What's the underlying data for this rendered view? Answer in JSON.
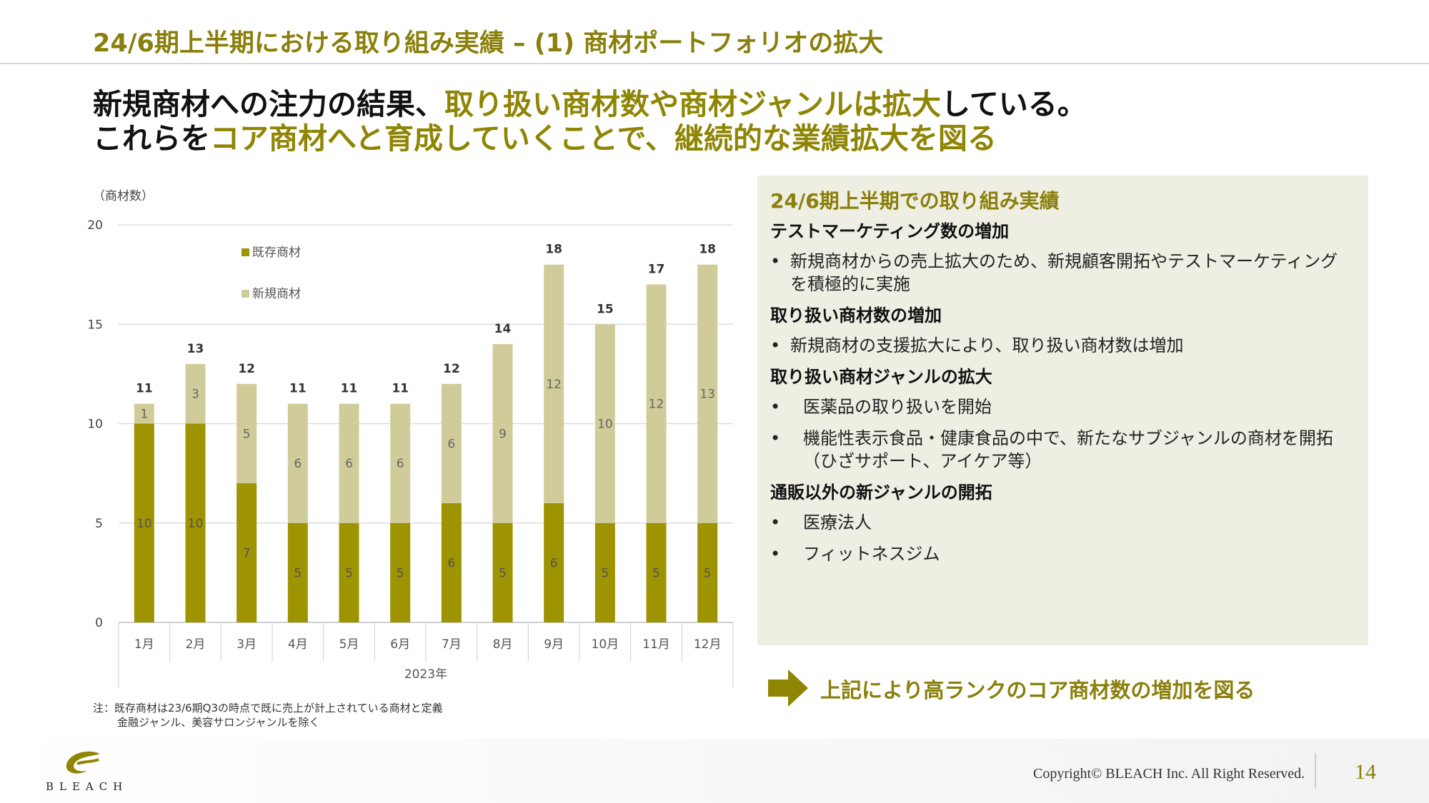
{
  "header": {
    "title": "24/6期上半期における取り組み実績 – (1) 商材ポートフォリオの拡大"
  },
  "headline": {
    "line1_a": "新規商材への注力の結果、",
    "line1_b": "取り扱い商材数や商材ジャンルは拡大",
    "line1_c": "している。",
    "line2_a": "これらを",
    "line2_b": "コア商材へと育成していくことで、継続的な業績拡大を図る"
  },
  "colors": {
    "accent": "#8a7f0a",
    "existing": "#9e9300",
    "new": "#d0cc9a",
    "panel_bg": "#efeee3"
  },
  "chart_data": {
    "type": "bar",
    "stacked": true,
    "unit_label": "（商材数）",
    "categories": [
      "1月",
      "2月",
      "3月",
      "4月",
      "5月",
      "6月",
      "7月",
      "8月",
      "9月",
      "10月",
      "11月",
      "12月"
    ],
    "category_group": "2023年",
    "series": [
      {
        "name": "既存商材",
        "values": [
          10,
          10,
          7,
          5,
          5,
          5,
          6,
          5,
          6,
          5,
          5,
          5
        ]
      },
      {
        "name": "新規商材",
        "values": [
          1,
          3,
          5,
          6,
          6,
          6,
          6,
          9,
          12,
          10,
          12,
          13
        ]
      }
    ],
    "totals": [
      11,
      13,
      12,
      11,
      11,
      11,
      12,
      14,
      18,
      15,
      17,
      18
    ],
    "ylim": [
      0,
      20
    ],
    "yticks": [
      0,
      5,
      10,
      15,
      20
    ],
    "grid": true,
    "legend_position": "top-left"
  },
  "note": {
    "line1": "注：既存商材は23/6期Q3の時点で既に売上が計上されている商材と定義",
    "line2": "金融ジャンル、美容サロンジャンルを除く"
  },
  "panel": {
    "title": "24/6期上半期での取り組み実績",
    "sections": [
      {
        "heading": "テストマーケティング数の増加",
        "style": "a",
        "bullets": [
          "新規商材からの売上拡大のため、新規顧客開拓やテストマーケティングを積極的に実施"
        ]
      },
      {
        "heading": "取り扱い商材数の増加",
        "style": "a",
        "bullets": [
          "新規商材の支援拡大により、取り扱い商材数は増加"
        ]
      },
      {
        "heading": "取り扱い商材ジャンルの拡大",
        "style": "b",
        "bullets": [
          "医薬品の取り扱いを開始",
          "機能性表示食品・健康食品の中で、新たなサブジャンルの商材を開拓（ひざサポート、アイケア等）"
        ]
      },
      {
        "heading": "通販以外の新ジャンルの開拓",
        "style": "b",
        "bullets": [
          "医療法人",
          "フィットネスジム"
        ]
      }
    ]
  },
  "conclusion": "上記により高ランクのコア商材数の増加を図る",
  "footer": {
    "logo_text": "BLEACH",
    "copyright": "Copyright© BLEACH Inc. All Right Reserved.",
    "page_number": "14"
  }
}
